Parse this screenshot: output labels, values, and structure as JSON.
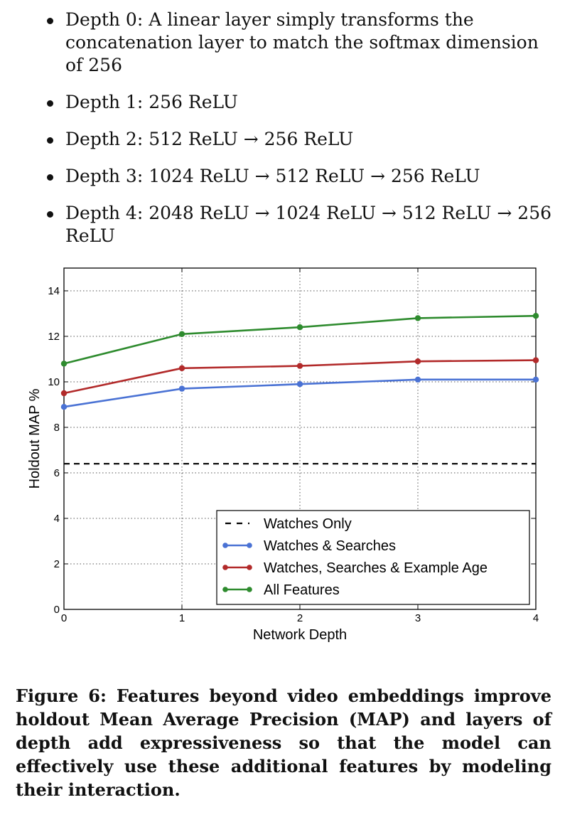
{
  "bullets": [
    {
      "text": "Depth 0: A linear layer simply transforms the concatenation layer to match the softmax dimension of 256"
    },
    {
      "text": "Depth 1: 256 ReLU"
    },
    {
      "text": "Depth 2: 512 ReLU → 256 ReLU"
    },
    {
      "text": "Depth 3: 1024 ReLU → 512 ReLU → 256 ReLU"
    },
    {
      "text": "Depth 4: 2048 ReLU → 1024 ReLU → 512 ReLU → 256 ReLU"
    }
  ],
  "chart_data": {
    "type": "line",
    "title": "",
    "xlabel": "Network Depth",
    "ylabel": "Holdout MAP %",
    "x": [
      0,
      1,
      2,
      3,
      4
    ],
    "xlim": [
      0,
      4
    ],
    "ylim": [
      0,
      15
    ],
    "xticks": [
      "0",
      "1",
      "2",
      "3",
      "4"
    ],
    "yticks": [
      "0",
      "2",
      "4",
      "6",
      "8",
      "10",
      "12",
      "14"
    ],
    "grid": true,
    "legend_position": "lower-right",
    "series": [
      {
        "name": "Watches Only",
        "values": [
          6.4,
          6.4,
          6.4,
          6.4,
          6.4
        ],
        "color": "#000000",
        "style": "dashed"
      },
      {
        "name": "Watches & Searches",
        "values": [
          8.9,
          9.7,
          9.9,
          10.1,
          10.1
        ],
        "color": "#4a72d4",
        "style": "solid"
      },
      {
        "name": "Watches, Searches & Example Age",
        "values": [
          9.5,
          10.6,
          10.7,
          10.9,
          10.95
        ],
        "color": "#b22a2a",
        "style": "solid"
      },
      {
        "name": "All Features",
        "values": [
          10.8,
          12.1,
          12.4,
          12.8,
          12.9
        ],
        "color": "#2e8b2e",
        "style": "solid"
      }
    ]
  },
  "caption": {
    "label": "Figure 6:",
    "text": "Features beyond video embeddings improve holdout Mean Average Precision (MAP) and layers of depth add expressiveness so that the model can effectively use these additional features by modeling their interaction."
  }
}
